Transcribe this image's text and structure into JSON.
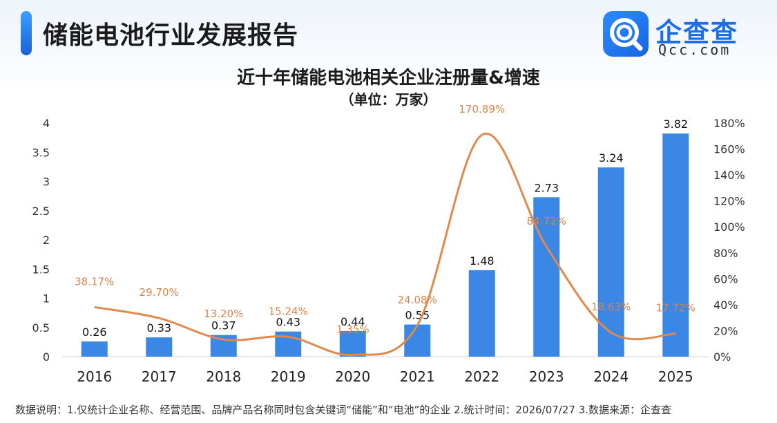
{
  "report_title": "储能电池行业发展报告",
  "logo": {
    "cn": "企查查",
    "en": "Qcc.com",
    "icon": "qcc-logo-icon"
  },
  "colors": {
    "bar": "#3a87e6",
    "line": "#e0894a",
    "line_label": "#d9844a",
    "axis": "#333333"
  },
  "footnote": "数据说明：1.仅统计企业名称、经营范围、品牌产品名称同时包含关键词“储能”和“电池”的企业   2.统计时间：2026/07/27   3.数据来源：企查查",
  "chart_data": {
    "type": "bar",
    "title": "近十年储能电池相关企业注册量&增速",
    "subtitle": "（单位：万家）",
    "categories": [
      "2016",
      "2017",
      "2018",
      "2019",
      "2020",
      "2021",
      "2022",
      "2023",
      "2024",
      "2025"
    ],
    "series": [
      {
        "type": "bar",
        "axis": "left",
        "values": [
          0.26,
          0.33,
          0.37,
          0.43,
          0.44,
          0.55,
          1.48,
          2.73,
          3.24,
          3.82
        ]
      },
      {
        "type": "line",
        "axis": "right",
        "values": [
          38.17,
          29.7,
          13.2,
          15.24,
          1.35,
          24.08,
          170.89,
          84.72,
          18.63,
          17.72
        ],
        "labels": [
          "38.17%",
          "29.70%",
          "13.20%",
          "15.24%",
          "1.35%",
          "24.08%",
          "170.89%",
          "84.72%",
          "18.63%",
          "17.72%"
        ]
      }
    ],
    "bar_labels": [
      "0.26",
      "0.33",
      "0.37",
      "0.43",
      "0.44",
      "0.55",
      "1.48",
      "2.73",
      "3.24",
      "3.82"
    ],
    "y_left": {
      "ylim": [
        0,
        4
      ],
      "ticks": [
        "0",
        "0.5",
        "1",
        "1.5",
        "2",
        "2.5",
        "3",
        "3.5",
        "4"
      ]
    },
    "y_right": {
      "ylim": [
        0,
        180
      ],
      "ticks": [
        "0%",
        "20%",
        "40%",
        "60%",
        "80%",
        "100%",
        "120%",
        "140%",
        "160%",
        "180%"
      ]
    },
    "grid": false,
    "legend": "none"
  }
}
